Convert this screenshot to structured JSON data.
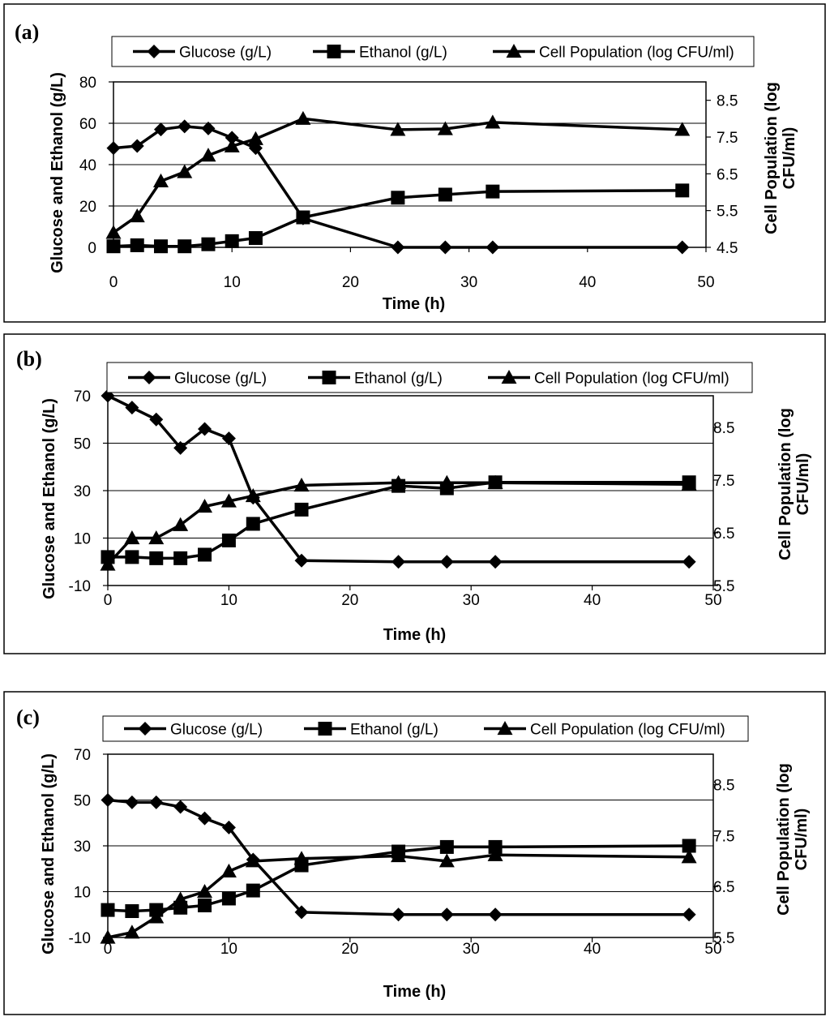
{
  "figure": {
    "background": "#ffffff",
    "line_color": "#000000",
    "grid_color": "#000000"
  },
  "chart_data": [
    {
      "panel_label": "(a)",
      "type": "line",
      "xlabel": "Time (h)",
      "ylabel": "Glucose and Ethanol (g/L)",
      "y2label_line1": "Cell Population (log",
      "y2label_line2": "CFU/ml)",
      "xlim": [
        0,
        50
      ],
      "ylim": [
        0,
        80
      ],
      "y2lim": [
        4.5,
        9
      ],
      "x_ticks": [
        0,
        10,
        20,
        30,
        40,
        50
      ],
      "x_tick_labels": [
        "0",
        "10",
        "20",
        "30",
        "40",
        "50"
      ],
      "y_ticks": [
        0,
        20,
        40,
        60,
        80
      ],
      "y_tick_labels": [
        "0",
        "20",
        "40",
        "60",
        "80"
      ],
      "y2_ticks": [
        4.5,
        5.5,
        6.5,
        7.5,
        8.5
      ],
      "y2_tick_labels": [
        "4.5",
        "5.5",
        "6.5",
        "7.5",
        "8.5"
      ],
      "grid": true,
      "legend": [
        "Glucose (g/L)",
        "Ethanol (g/L)",
        "Cell Population (log CFU/ml)"
      ],
      "series": [
        {
          "name": "Glucose (g/L)",
          "marker": "diamond",
          "axis": "left",
          "x": [
            0,
            2,
            4,
            6,
            8,
            10,
            12,
            16,
            24,
            28,
            32,
            48
          ],
          "values": [
            48,
            49,
            57,
            58.5,
            57.5,
            53,
            48,
            14,
            0,
            0,
            0,
            0
          ]
        },
        {
          "name": "Ethanol (g/L)",
          "marker": "square",
          "axis": "left",
          "x": [
            0,
            2,
            4,
            6,
            8,
            10,
            12,
            16,
            24,
            28,
            32,
            48
          ],
          "values": [
            0.5,
            1,
            0.5,
            0.5,
            1.5,
            3,
            4.5,
            14.5,
            24,
            25.5,
            27,
            27.5
          ]
        },
        {
          "name": "Cell Population (log CFU/ml)",
          "marker": "triangle",
          "axis": "right",
          "x": [
            0,
            2,
            4,
            6,
            8,
            10,
            12,
            16,
            24,
            28,
            32,
            48
          ],
          "values": [
            4.9,
            5.35,
            6.3,
            6.55,
            7.0,
            7.25,
            7.45,
            8.0,
            7.7,
            7.72,
            7.9,
            7.7
          ]
        }
      ]
    },
    {
      "panel_label": "(b)",
      "type": "line",
      "xlabel": "Time (h)",
      "ylabel": "Glucose and Ethanol (g/L)",
      "y2label_line1": "Cell Population (log",
      "y2label_line2": "CFU/ml)",
      "xlim": [
        0,
        50
      ],
      "ylim": [
        -10,
        70
      ],
      "y2lim": [
        5.5,
        9.1
      ],
      "x_ticks": [
        0,
        10,
        20,
        30,
        40,
        50
      ],
      "x_tick_labels": [
        "0",
        "10",
        "20",
        "30",
        "40",
        "50"
      ],
      "y_ticks": [
        -10,
        10,
        30,
        50,
        70
      ],
      "y_tick_labels": [
        "-10",
        "10",
        "30",
        "50",
        "70"
      ],
      "y2_ticks": [
        5.5,
        6.5,
        7.5,
        8.5
      ],
      "y2_tick_labels": [
        "5.5",
        "6.5",
        "7.5",
        "8.5"
      ],
      "grid": true,
      "legend": [
        "Glucose (g/L)",
        "Ethanol (g/L)",
        "Cell Population (log CFU/ml)"
      ],
      "series": [
        {
          "name": "Glucose (g/L)",
          "marker": "diamond",
          "axis": "left",
          "x": [
            0,
            2,
            4,
            6,
            8,
            10,
            12,
            16,
            24,
            28,
            32,
            48
          ],
          "values": [
            70,
            65,
            60,
            48,
            56,
            52,
            27,
            0.5,
            0,
            0,
            0,
            0
          ]
        },
        {
          "name": "Ethanol (g/L)",
          "marker": "square",
          "axis": "left",
          "x": [
            0,
            2,
            4,
            6,
            8,
            10,
            12,
            16,
            24,
            28,
            32,
            48
          ],
          "values": [
            2,
            2,
            1.5,
            1.5,
            3,
            9,
            16,
            22,
            32,
            31,
            33.5,
            33.5
          ]
        },
        {
          "name": "Cell Population (log CFU/ml)",
          "marker": "triangle",
          "axis": "right",
          "x": [
            0,
            2,
            4,
            6,
            8,
            10,
            12,
            16,
            24,
            28,
            32,
            48
          ],
          "values": [
            5.9,
            6.4,
            6.4,
            6.65,
            7.0,
            7.1,
            7.2,
            7.4,
            7.45,
            7.45,
            7.45,
            7.42
          ]
        }
      ]
    },
    {
      "panel_label": "(c)",
      "type": "line",
      "xlabel": "Time (h)",
      "ylabel": "Glucose and Ethanol (g/L)",
      "y2label_line1": "Cell Population (log",
      "y2label_line2": "CFU/ml)",
      "xlim": [
        0,
        50
      ],
      "ylim": [
        -10,
        70
      ],
      "y2lim": [
        5.5,
        9.1
      ],
      "x_ticks": [
        0,
        10,
        20,
        30,
        40,
        50
      ],
      "x_tick_labels": [
        "0",
        "10",
        "20",
        "30",
        "40",
        "50"
      ],
      "y_ticks": [
        -10,
        10,
        30,
        50,
        70
      ],
      "y_tick_labels": [
        "-10",
        "10",
        "30",
        "50",
        "70"
      ],
      "y2_ticks": [
        5.5,
        6.5,
        7.5,
        8.5
      ],
      "y2_tick_labels": [
        "5.5",
        "6.5",
        "7.5",
        "8.5"
      ],
      "grid": true,
      "legend": [
        "Glucose (g/L)",
        "Ethanol (g/L)",
        "Cell Population (log CFU/ml)"
      ],
      "series": [
        {
          "name": "Glucose (g/L)",
          "marker": "diamond",
          "axis": "left",
          "x": [
            0,
            2,
            4,
            6,
            8,
            10,
            12,
            16,
            24,
            28,
            32,
            48
          ],
          "values": [
            50,
            49,
            49,
            47,
            42,
            38,
            24,
            1,
            0,
            0,
            0,
            0
          ]
        },
        {
          "name": "Ethanol (g/L)",
          "marker": "square",
          "axis": "left",
          "x": [
            0,
            2,
            4,
            6,
            8,
            10,
            12,
            16,
            24,
            28,
            32,
            48
          ],
          "values": [
            2,
            1.5,
            2,
            3,
            4,
            7,
            10.5,
            21.5,
            27.5,
            29.5,
            29.5,
            30
          ]
        },
        {
          "name": "Cell Population (log CFU/ml)",
          "marker": "triangle",
          "axis": "right",
          "x": [
            0,
            2,
            4,
            6,
            8,
            10,
            12,
            16,
            24,
            28,
            32,
            48
          ],
          "values": [
            5.5,
            5.6,
            5.9,
            6.25,
            6.4,
            6.8,
            7.0,
            7.05,
            7.1,
            7.0,
            7.12,
            7.08
          ]
        }
      ]
    }
  ]
}
